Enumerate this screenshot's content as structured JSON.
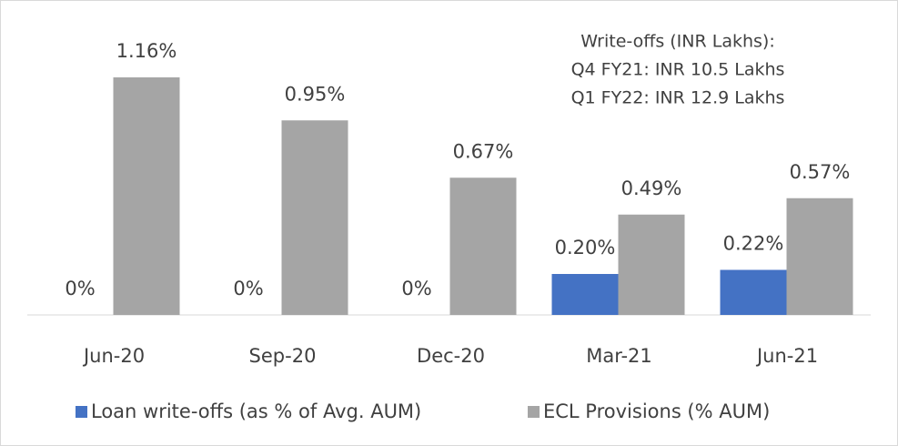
{
  "chart_data": {
    "type": "bar",
    "categories": [
      "Jun-20",
      "Sep-20",
      "Dec-20",
      "Mar-21",
      "Jun-21"
    ],
    "series": [
      {
        "name": "Loan write-offs (as % of Avg. AUM)",
        "color": "#4472c4",
        "values": [
          0,
          0,
          0,
          0.2,
          0.22
        ],
        "value_labels": [
          "0%",
          "0%",
          "0%",
          "0.20%",
          "0.22%"
        ]
      },
      {
        "name": "ECL Provisions (% AUM)",
        "color": "#a5a5a5",
        "values": [
          1.16,
          0.95,
          0.67,
          0.49,
          0.57
        ],
        "value_labels": [
          "1.16%",
          "0.95%",
          "0.67%",
          "0.49%",
          "0.57%"
        ]
      }
    ],
    "annotations": [
      "Write-offs (INR Lakhs):",
      "Q4 FY21: INR 10.5 Lakhs",
      "Q1 FY22: INR 12.9 Lakhs"
    ]
  }
}
